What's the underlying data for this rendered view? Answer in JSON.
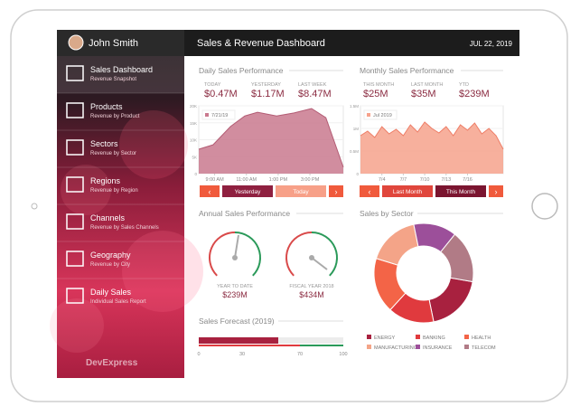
{
  "header": {
    "user": "John Smith",
    "title": "Sales & Revenue Dashboard",
    "date": "JUL 22, 2019"
  },
  "nav": [
    {
      "label": "Sales Dashboard",
      "sub": "Revenue Snapshot"
    },
    {
      "label": "Products",
      "sub": "Revenue by Product"
    },
    {
      "label": "Sectors",
      "sub": "Revenue by Sector"
    },
    {
      "label": "Regions",
      "sub": "Revenue by Region"
    },
    {
      "label": "Channels",
      "sub": "Revenue by Sales Channels"
    },
    {
      "label": "Geography",
      "sub": "Revenue by City"
    },
    {
      "label": "Daily Sales",
      "sub": "Individual Sales Report"
    }
  ],
  "logo": "DevExpress",
  "daily": {
    "title": "Daily Sales Performance",
    "kpis": [
      {
        "label": "TODAY",
        "value": "$0.47M"
      },
      {
        "label": "YESTERDAY",
        "value": "$1.17M"
      },
      {
        "label": "LAST WEEK",
        "value": "$8.47M"
      }
    ],
    "chart": {
      "type": "area",
      "legend": "7/21/19",
      "color": "#c9798e",
      "x": [
        8,
        8.9,
        10,
        10.9,
        11.7,
        12.9,
        14,
        15.1,
        16,
        17.1
      ],
      "values": [
        7.2,
        8.5,
        13.9,
        17,
        18.1,
        17,
        17.9,
        19.2,
        16.5,
        1.9
      ],
      "xlim": [
        8,
        17.1
      ],
      "xticks": [
        {
          "value": 9,
          "label": "9:00 AM"
        },
        {
          "value": 11,
          "label": "11:00 AM"
        },
        {
          "value": 13,
          "label": "1:00 PM"
        },
        {
          "value": 15,
          "label": "3:00 PM"
        }
      ],
      "ylim": [
        0,
        20
      ],
      "yticks": [
        0,
        {
          "value": 5,
          "label": "5K"
        },
        {
          "value": 10,
          "label": "10K"
        },
        {
          "value": 15,
          "label": "15K"
        },
        {
          "value": 20,
          "label": "20K"
        }
      ]
    },
    "buttons": [
      "Yesterday",
      "Today"
    ]
  },
  "monthly": {
    "title": "Monthly Sales Performance",
    "kpis": [
      {
        "label": "THIS MONTH",
        "value": "$25M"
      },
      {
        "label": "LAST MONTH",
        "value": "$35M"
      },
      {
        "label": "YTD",
        "value": "$239M"
      }
    ],
    "chart": {
      "type": "area",
      "legend": "Jul 2019",
      "color": "#f6a28c",
      "x": [
        1,
        2,
        3,
        4,
        5,
        6,
        7,
        8,
        9,
        10,
        11,
        12,
        13,
        14,
        15,
        16,
        17,
        18,
        19,
        20,
        21
      ],
      "values": [
        0.84,
        0.94,
        0.8,
        1.04,
        0.88,
        0.98,
        0.84,
        1.08,
        0.92,
        1.14,
        1.0,
        0.9,
        1.04,
        0.84,
        1.08,
        0.96,
        1.12,
        0.88,
        1.0,
        0.84,
        0.54
      ],
      "xlim": [
        1,
        21
      ],
      "xticks": [
        {
          "value": 4,
          "label": "7/4"
        },
        {
          "value": 7,
          "label": "7/7"
        },
        {
          "value": 10,
          "label": "7/10"
        },
        {
          "value": 13,
          "label": "7/13"
        },
        {
          "value": 16,
          "label": "7/16"
        }
      ],
      "ylim": [
        0,
        1.5
      ],
      "yticks": [
        0,
        {
          "value": 0.5,
          "label": "0.5M"
        },
        {
          "value": 1,
          "label": "1M"
        },
        {
          "value": 1.5,
          "label": "1.5M"
        }
      ]
    },
    "buttons": [
      "Last Month",
      "This Month"
    ]
  },
  "annual": {
    "title": "Annual Sales Performance",
    "gauges": [
      {
        "label": "YEAR TO DATE",
        "value": "$239M"
      },
      {
        "label": "FISCAL YEAR 2018",
        "value": "$434M"
      }
    ]
  },
  "forecast": {
    "title": "Sales Forecast (2019)",
    "chart": {
      "type": "bullet",
      "value": 55,
      "xlim": [
        0,
        100
      ],
      "xticks": [
        0,
        30,
        70,
        100
      ]
    }
  },
  "sector": {
    "title": "Sales by Sector",
    "chart": {
      "type": "donut",
      "categories": [
        "ENERGY",
        "BANKING",
        "HEALTH",
        "MANUFACTURING",
        "INSURANCE",
        "TELECOM"
      ],
      "values": [
        19,
        15,
        18,
        17,
        14,
        17
      ],
      "colors": [
        "#a8213f",
        "#e03a3e",
        "#f36447",
        "#f4a488",
        "#9c4f9a",
        "#b17b86"
      ]
    }
  }
}
